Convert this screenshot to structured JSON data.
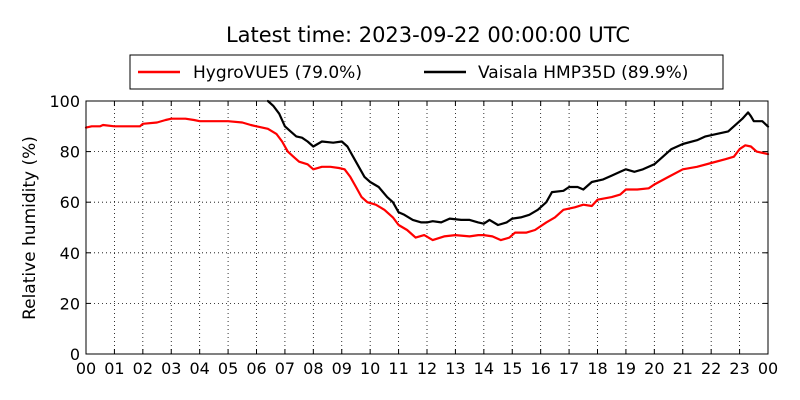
{
  "chart_data": {
    "type": "line",
    "title": "Latest time: 2023-09-22 00:00:00 UTC",
    "xlabel": "",
    "ylabel": "Relative humidity (%)",
    "xlim": [
      0,
      24
    ],
    "ylim": [
      0,
      100
    ],
    "grid": true,
    "legend_position": "top",
    "x_tick_labels": [
      "00",
      "01",
      "02",
      "03",
      "04",
      "05",
      "06",
      "07",
      "08",
      "09",
      "10",
      "11",
      "12",
      "13",
      "14",
      "15",
      "16",
      "17",
      "18",
      "19",
      "20",
      "21",
      "22",
      "23",
      "00"
    ],
    "y_ticks": [
      0,
      20,
      40,
      60,
      80,
      100
    ],
    "series": [
      {
        "name": "HygroVUE5 (79.0%)",
        "color": "#ff0000",
        "points": [
          [
            0.0,
            89.5
          ],
          [
            0.2,
            90.0
          ],
          [
            0.5,
            90.0
          ],
          [
            0.6,
            90.5
          ],
          [
            1.0,
            90.0
          ],
          [
            1.5,
            90.0
          ],
          [
            1.9,
            90.0
          ],
          [
            2.0,
            91.0
          ],
          [
            2.5,
            91.5
          ],
          [
            2.8,
            92.5
          ],
          [
            3.0,
            93.0
          ],
          [
            3.5,
            93.0
          ],
          [
            3.8,
            92.5
          ],
          [
            4.0,
            92.0
          ],
          [
            4.5,
            92.0
          ],
          [
            4.8,
            92.0
          ],
          [
            5.0,
            92.0
          ],
          [
            5.5,
            91.5
          ],
          [
            5.8,
            90.5
          ],
          [
            6.0,
            90.0
          ],
          [
            6.4,
            89.0
          ],
          [
            6.7,
            87.0
          ],
          [
            6.9,
            84.0
          ],
          [
            7.1,
            80.0
          ],
          [
            7.3,
            78.0
          ],
          [
            7.5,
            76.0
          ],
          [
            7.8,
            75.0
          ],
          [
            8.0,
            73.0
          ],
          [
            8.3,
            74.0
          ],
          [
            8.6,
            74.0
          ],
          [
            8.9,
            73.5
          ],
          [
            9.1,
            73.0
          ],
          [
            9.3,
            70.0
          ],
          [
            9.5,
            66.0
          ],
          [
            9.7,
            62.0
          ],
          [
            9.9,
            60.0
          ],
          [
            10.2,
            59.0
          ],
          [
            10.5,
            57.0
          ],
          [
            10.8,
            54.0
          ],
          [
            11.0,
            51.0
          ],
          [
            11.3,
            49.0
          ],
          [
            11.6,
            46.0
          ],
          [
            11.9,
            47.0
          ],
          [
            12.2,
            45.0
          ],
          [
            12.6,
            46.5
          ],
          [
            13.0,
            47.0
          ],
          [
            13.5,
            46.5
          ],
          [
            13.8,
            47.0
          ],
          [
            14.0,
            47.0
          ],
          [
            14.3,
            46.5
          ],
          [
            14.6,
            45.0
          ],
          [
            14.9,
            46.0
          ],
          [
            15.1,
            48.0
          ],
          [
            15.5,
            48.0
          ],
          [
            15.8,
            49.0
          ],
          [
            16.2,
            52.0
          ],
          [
            16.5,
            54.0
          ],
          [
            16.8,
            57.0
          ],
          [
            17.2,
            58.0
          ],
          [
            17.5,
            59.0
          ],
          [
            17.8,
            58.5
          ],
          [
            18.0,
            61.0
          ],
          [
            18.5,
            62.0
          ],
          [
            18.8,
            63.0
          ],
          [
            19.0,
            65.0
          ],
          [
            19.4,
            65.0
          ],
          [
            19.8,
            65.5
          ],
          [
            20.0,
            67.0
          ],
          [
            20.5,
            70.0
          ],
          [
            21.0,
            73.0
          ],
          [
            21.5,
            74.0
          ],
          [
            22.0,
            75.5
          ],
          [
            22.5,
            77.0
          ],
          [
            22.8,
            78.0
          ],
          [
            23.0,
            81.0
          ],
          [
            23.2,
            82.5
          ],
          [
            23.4,
            82.0
          ],
          [
            23.6,
            80.0
          ],
          [
            24.0,
            79.0
          ]
        ]
      },
      {
        "name": "Vaisala HMP35D (89.9%)",
        "color": "#000000",
        "points": [
          [
            6.4,
            100.0
          ],
          [
            6.6,
            98.0
          ],
          [
            6.8,
            95.0
          ],
          [
            7.0,
            90.0
          ],
          [
            7.2,
            88.0
          ],
          [
            7.4,
            86.0
          ],
          [
            7.6,
            85.5
          ],
          [
            7.8,
            84.0
          ],
          [
            8.0,
            82.0
          ],
          [
            8.3,
            84.0
          ],
          [
            8.7,
            83.5
          ],
          [
            9.0,
            84.0
          ],
          [
            9.2,
            82.0
          ],
          [
            9.4,
            78.0
          ],
          [
            9.6,
            74.0
          ],
          [
            9.8,
            70.0
          ],
          [
            10.0,
            68.0
          ],
          [
            10.3,
            66.0
          ],
          [
            10.6,
            62.0
          ],
          [
            10.8,
            60.0
          ],
          [
            11.0,
            56.0
          ],
          [
            11.2,
            55.0
          ],
          [
            11.5,
            53.0
          ],
          [
            11.8,
            52.0
          ],
          [
            12.0,
            52.0
          ],
          [
            12.2,
            52.5
          ],
          [
            12.5,
            52.0
          ],
          [
            12.8,
            53.5
          ],
          [
            13.2,
            53.0
          ],
          [
            13.5,
            53.0
          ],
          [
            13.8,
            52.0
          ],
          [
            14.0,
            51.5
          ],
          [
            14.2,
            53.0
          ],
          [
            14.5,
            51.0
          ],
          [
            14.8,
            52.0
          ],
          [
            15.0,
            53.5
          ],
          [
            15.3,
            54.0
          ],
          [
            15.6,
            55.0
          ],
          [
            15.9,
            57.0
          ],
          [
            16.2,
            60.0
          ],
          [
            16.4,
            64.0
          ],
          [
            16.8,
            64.5
          ],
          [
            17.0,
            66.0
          ],
          [
            17.3,
            66.0
          ],
          [
            17.5,
            65.0
          ],
          [
            17.8,
            68.0
          ],
          [
            18.2,
            69.0
          ],
          [
            18.5,
            70.5
          ],
          [
            18.8,
            72.0
          ],
          [
            19.0,
            73.0
          ],
          [
            19.3,
            72.0
          ],
          [
            19.6,
            73.0
          ],
          [
            20.0,
            75.0
          ],
          [
            20.3,
            78.0
          ],
          [
            20.6,
            81.0
          ],
          [
            21.0,
            83.0
          ],
          [
            21.5,
            84.5
          ],
          [
            21.8,
            86.0
          ],
          [
            22.2,
            87.0
          ],
          [
            22.6,
            88.0
          ],
          [
            22.8,
            90.0
          ],
          [
            23.1,
            93.0
          ],
          [
            23.3,
            95.5
          ],
          [
            23.4,
            94.0
          ],
          [
            23.5,
            92.0
          ],
          [
            23.8,
            92.0
          ],
          [
            24.0,
            89.9
          ]
        ]
      }
    ]
  }
}
